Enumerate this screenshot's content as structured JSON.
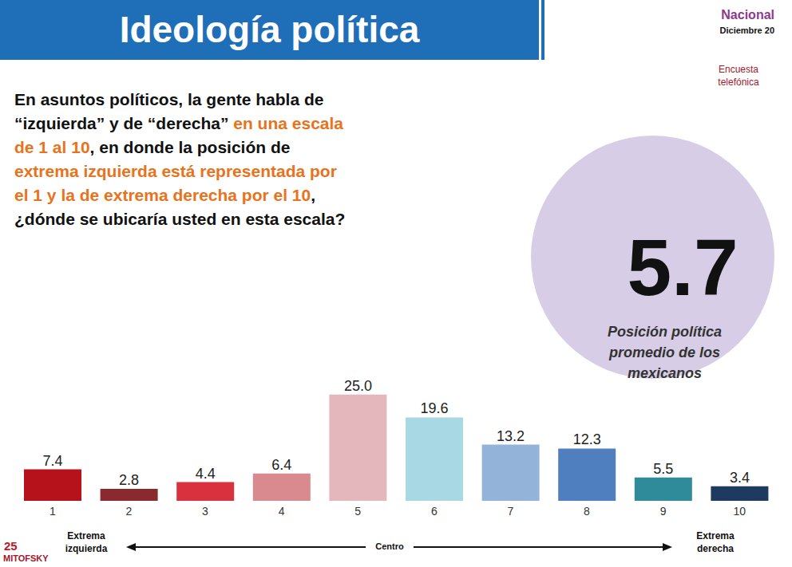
{
  "title": "Ideología política",
  "scope": "Nacional",
  "date": "Diciembre 20",
  "method": "Encuesta telefónica",
  "question_lines": [
    [
      {
        "text": "En asuntos políticos, la gente habla de",
        "color": "#111111"
      }
    ],
    [
      {
        "text": "“izquierda” y de “derecha” ",
        "color": "#111111"
      },
      {
        "text": "en una escala",
        "color": "#e8731c"
      }
    ],
    [
      {
        "text": "de 1 al 10",
        "color": "#e8731c"
      },
      {
        "text": ", en donde la posición de",
        "color": "#111111"
      }
    ],
    [
      {
        "text": "extrema izquierda está representada por",
        "color": "#e8731c"
      }
    ],
    [
      {
        "text": "el 1 y la de extrema derecha por el 10",
        "color": "#e8731c"
      },
      {
        "text": ",",
        "color": "#111111"
      }
    ],
    [
      {
        "text": "¿dónde se ubicaría usted en esta escala?",
        "color": "#111111"
      }
    ]
  ],
  "average": 5.7,
  "average_caption": "Posición política promedio de los mexicanos",
  "chart_data": {
    "type": "bar",
    "categories": [
      "1",
      "2",
      "3",
      "4",
      "5",
      "6",
      "7",
      "8",
      "9",
      "10"
    ],
    "values": [
      7.4,
      2.8,
      4.4,
      6.4,
      25.0,
      19.6,
      13.2,
      12.3,
      5.5,
      3.4
    ],
    "value_labels": [
      "7.4",
      "2.8",
      "4.4",
      "6.4",
      "25.0",
      "19.6",
      "13.2",
      "12.3",
      "5.5",
      "3.4"
    ],
    "colors": [
      "#b5121b",
      "#8b2a2e",
      "#d9323e",
      "#d98a8e",
      "#e3b7bb",
      "#a8d8e4",
      "#93b3d9",
      "#4f7fbf",
      "#2f8a9a",
      "#1f3a5f"
    ],
    "ylim": [
      0,
      30
    ],
    "data_labels": true,
    "tick_labels": "x",
    "grid": false
  },
  "scale_labels": {
    "left": "Extrema izquierda",
    "center": "Centro",
    "right": "Extrema derecha"
  },
  "logo": {
    "number": "25",
    "name": "MITOFSKY"
  }
}
